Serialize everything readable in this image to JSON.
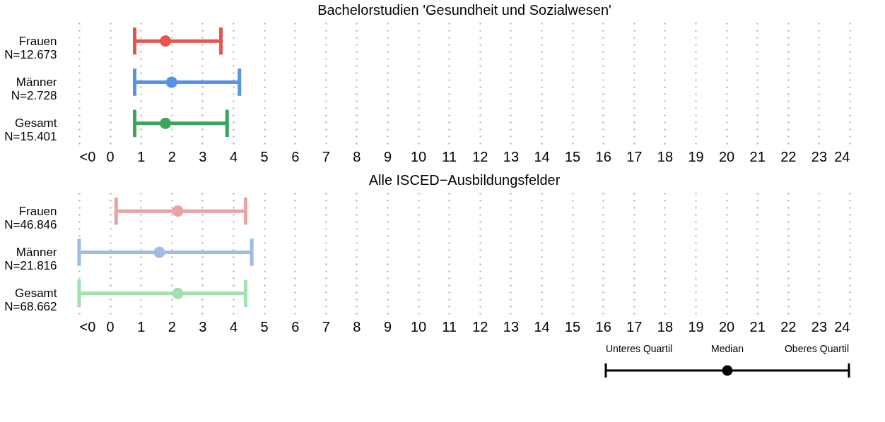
{
  "chart_data": [
    {
      "type": "scatter",
      "orientation": "horizontal",
      "title": "Bachelorstudien 'Gesundheit und Sozialwesen'",
      "categories": [
        "Frauen\nN=12.673",
        "Männer\nN=2.728",
        "Gesamt\nN=15.401"
      ],
      "values": [
        1.8,
        2.0,
        1.8
      ],
      "errors": [
        [
          0.8,
          3.6
        ],
        [
          0.8,
          4.2
        ],
        [
          0.8,
          3.8
        ]
      ],
      "colors": [
        "#e8534f",
        "#5592e8",
        "#3aa65a"
      ],
      "xlim": [
        -1,
        24
      ],
      "xticks": [
        {
          "value": -1,
          "label": "<0"
        },
        0,
        1,
        2,
        3,
        4,
        5,
        6,
        7,
        8,
        9,
        10,
        11,
        12,
        13,
        14,
        15,
        16,
        17,
        18,
        19,
        20,
        21,
        22,
        23,
        24
      ],
      "grid": "x",
      "marker": "circle"
    },
    {
      "type": "scatter",
      "orientation": "horizontal",
      "title": "Alle ISCED−Ausbildungsfelder",
      "categories": [
        "Frauen\nN=46.846",
        "Männer\nN=21.816",
        "Gesamt\nN=68.662"
      ],
      "values": [
        2.2,
        1.6,
        2.2
      ],
      "errors": [
        [
          0.2,
          4.4
        ],
        [
          -1,
          4.6
        ],
        [
          -1,
          4.4
        ]
      ],
      "colors": [
        "#e8a3a3",
        "#9dbde6",
        "#a2e0b0"
      ],
      "xlim": [
        -1,
        24
      ],
      "xticks": [
        {
          "value": -1,
          "label": "<0"
        },
        0,
        1,
        2,
        3,
        4,
        5,
        6,
        7,
        8,
        9,
        10,
        11,
        12,
        13,
        14,
        15,
        16,
        17,
        18,
        19,
        20,
        21,
        22,
        23,
        24
      ],
      "grid": "x",
      "marker": "circle",
      "annotations": [
        "Unteres Quartil",
        "Median",
        "Oberes Quartil"
      ]
    }
  ]
}
